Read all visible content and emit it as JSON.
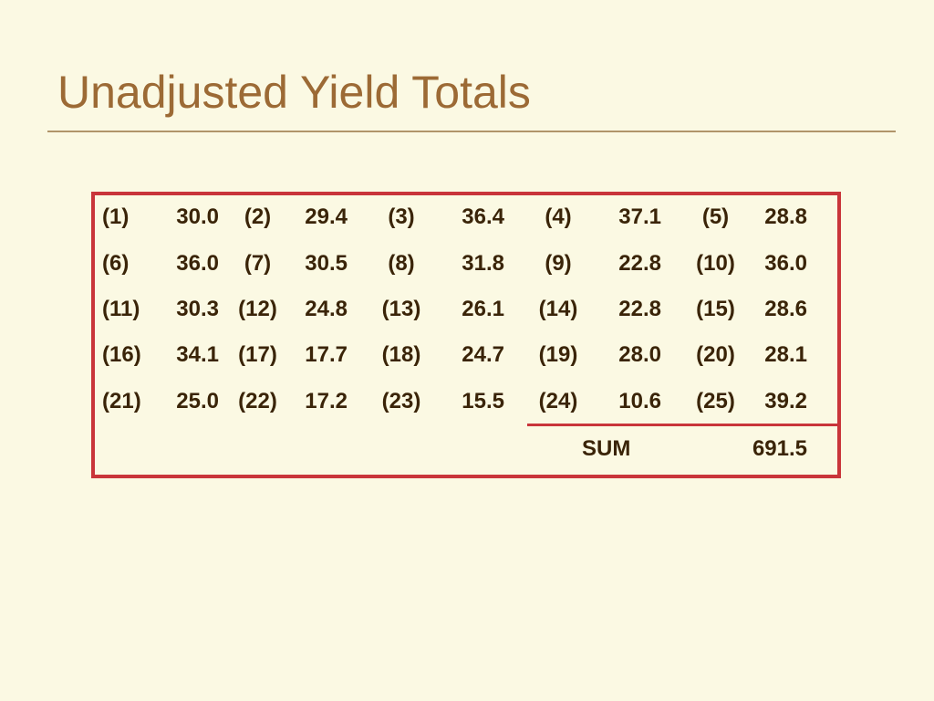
{
  "slide": {
    "title": "Unadjusted Yield Totals"
  },
  "table": {
    "rows": [
      [
        [
          "(1)",
          "30.0"
        ],
        [
          "(2)",
          "29.4"
        ],
        [
          "(3)",
          "36.4"
        ],
        [
          "(4)",
          "37.1"
        ],
        [
          "(5)",
          "28.8"
        ]
      ],
      [
        [
          "(6)",
          "36.0"
        ],
        [
          "(7)",
          "30.5"
        ],
        [
          "(8)",
          "31.8"
        ],
        [
          "(9)",
          "22.8"
        ],
        [
          "(10)",
          "36.0"
        ]
      ],
      [
        [
          "(11)",
          "30.3"
        ],
        [
          "(12)",
          "24.8"
        ],
        [
          "(13)",
          "26.1"
        ],
        [
          "(14)",
          "22.8"
        ],
        [
          "(15)",
          "28.6"
        ]
      ],
      [
        [
          "(16)",
          "34.1"
        ],
        [
          "(17)",
          "17.7"
        ],
        [
          "(18)",
          "24.7"
        ],
        [
          "(19)",
          "28.0"
        ],
        [
          "(20)",
          "28.1"
        ]
      ],
      [
        [
          "(21)",
          "25.0"
        ],
        [
          "(22)",
          "17.2"
        ],
        [
          "(23)",
          "15.5"
        ],
        [
          "(24)",
          "10.6"
        ],
        [
          "(25)",
          "39.2"
        ]
      ]
    ],
    "sum_label": "SUM",
    "sum_value": "691.5"
  },
  "colors": {
    "background": "#fbf9e3",
    "title": "#9c6a35",
    "border": "#c9353a",
    "text": "#3a2408"
  }
}
